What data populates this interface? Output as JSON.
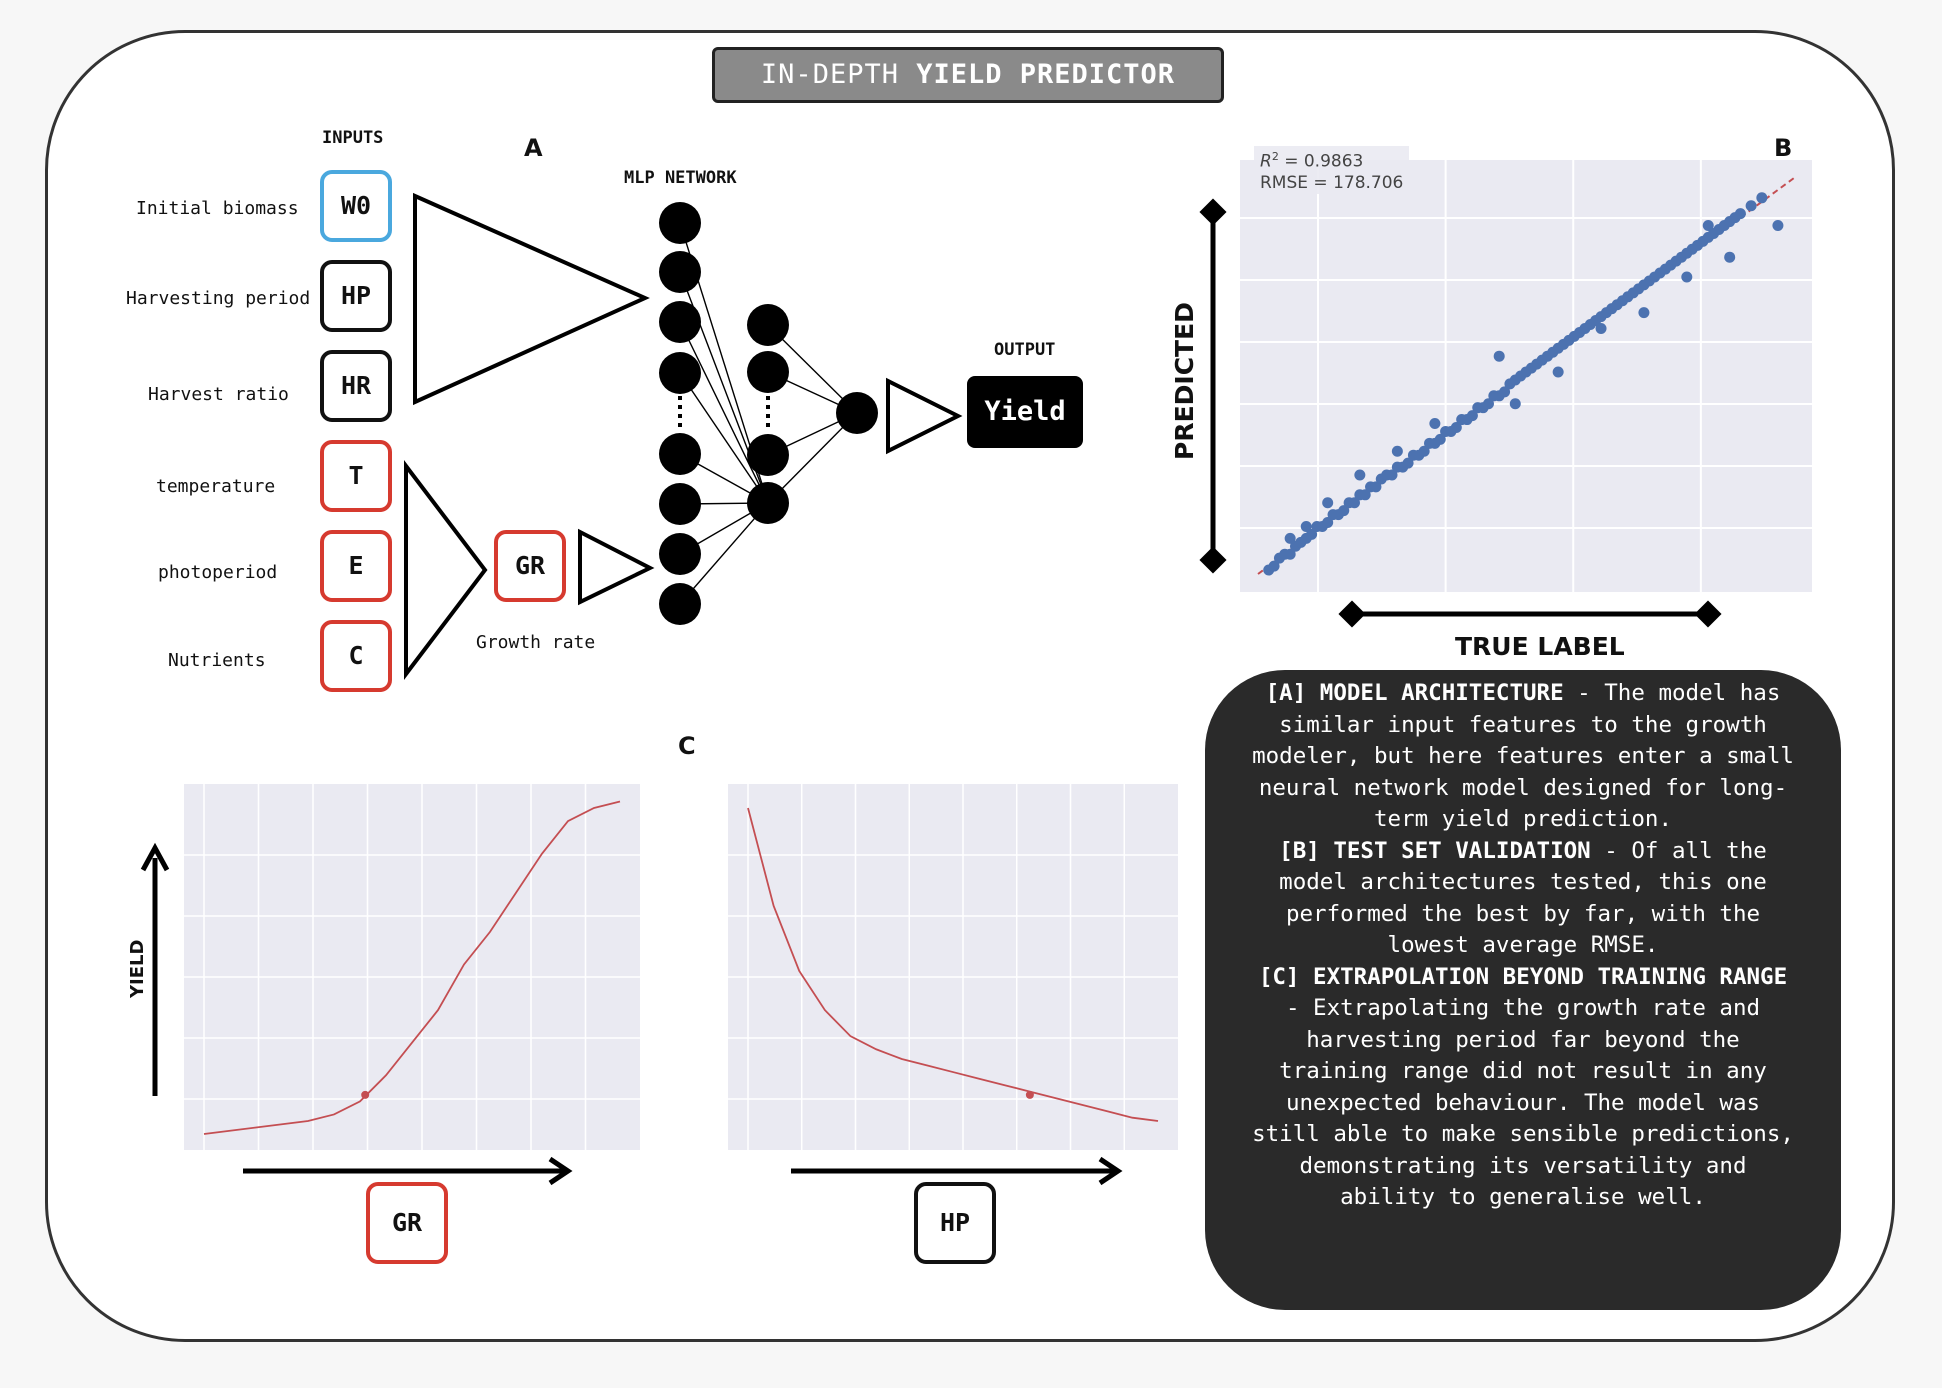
{
  "title": {
    "prefix": "IN-DEPTH",
    "bold": "YIELD PREDICTOR"
  },
  "panel_a": {
    "letter": "A",
    "inputs_header": "INPUTS",
    "mlp_header": "MLP NETWORK",
    "output_header": "OUTPUT",
    "inputs": [
      {
        "label": "Initial biomass",
        "code": "W0",
        "color": "blue"
      },
      {
        "label": "Harvesting period",
        "code": "HP",
        "color": "black"
      },
      {
        "label": "Harvest ratio",
        "code": "HR",
        "color": "black"
      },
      {
        "label": "temperature",
        "code": "T",
        "color": "red"
      },
      {
        "label": "photoperiod",
        "code": "E",
        "color": "red"
      },
      {
        "label": "Nutrients",
        "code": "C",
        "color": "red"
      }
    ],
    "growth_rate_code": "GR",
    "growth_rate_label": "Growth rate",
    "output_label": "Yield"
  },
  "panel_b": {
    "letter": "B",
    "r2_text": "= 0.9863",
    "r2_symbol": "R",
    "r2_sup": "2",
    "rmse_text": "RMSE = 178.706",
    "xlabel": "TRUE LABEL",
    "ylabel": "PREDICTED"
  },
  "panel_c": {
    "letter": "C",
    "ylabel": "YIELD",
    "left_x_code": "GR",
    "right_x_code": "HP"
  },
  "description": {
    "a_head": "[A] MODEL ARCHITECTURE",
    "a_body": " - The model has similar input features to the growth modeler, but here features enter a small neural network model designed for long-term yield prediction.",
    "b_head": "[B] TEST SET VALIDATION",
    "b_body": " - Of all the model architectures tested, this one performed the best by far, with the lowest average RMSE.",
    "c_head": "[C] EXTRAPOLATION BEYOND TRAINING RANGE",
    "c_body": " - Extrapolating the growth rate and harvesting period far beyond the training range did not result in any unexpected behaviour. The model was still able to make sensible predictions, demonstrating its versatility and ability to generalise well."
  },
  "chart_data": [
    {
      "type": "scatter",
      "title": "",
      "xlabel": "TRUE LABEL",
      "ylabel": "PREDICTED",
      "annotations": [
        "R^2 = 0.9863",
        "RMSE = 178.706"
      ],
      "reference_line": "y = x (dashed red)",
      "grid": true,
      "points_x": [
        0.02,
        0.03,
        0.04,
        0.05,
        0.06,
        0.07,
        0.08,
        0.09,
        0.1,
        0.11,
        0.12,
        0.13,
        0.14,
        0.15,
        0.16,
        0.17,
        0.18,
        0.19,
        0.2,
        0.21,
        0.22,
        0.23,
        0.24,
        0.25,
        0.26,
        0.27,
        0.28,
        0.29,
        0.3,
        0.31,
        0.32,
        0.33,
        0.34,
        0.35,
        0.36,
        0.37,
        0.38,
        0.39,
        0.4,
        0.41,
        0.42,
        0.43,
        0.44,
        0.45,
        0.46,
        0.47,
        0.48,
        0.49,
        0.5,
        0.51,
        0.52,
        0.53,
        0.54,
        0.55,
        0.56,
        0.57,
        0.58,
        0.59,
        0.6,
        0.61,
        0.62,
        0.63,
        0.64,
        0.65,
        0.66,
        0.67,
        0.68,
        0.69,
        0.7,
        0.71,
        0.72,
        0.73,
        0.74,
        0.75,
        0.76,
        0.77,
        0.78,
        0.79,
        0.8,
        0.81,
        0.82,
        0.83,
        0.84,
        0.85,
        0.86,
        0.87,
        0.88,
        0.89,
        0.9,
        0.92,
        0.94,
        0.97,
        0.06,
        0.09,
        0.13,
        0.19,
        0.26,
        0.33,
        0.45,
        0.48,
        0.56,
        0.64,
        0.72,
        0.8,
        0.84,
        0.88
      ],
      "points_y": [
        0.01,
        0.02,
        0.04,
        0.05,
        0.05,
        0.07,
        0.08,
        0.09,
        0.1,
        0.12,
        0.12,
        0.13,
        0.15,
        0.15,
        0.16,
        0.18,
        0.18,
        0.2,
        0.2,
        0.22,
        0.22,
        0.24,
        0.25,
        0.25,
        0.27,
        0.27,
        0.28,
        0.3,
        0.3,
        0.31,
        0.33,
        0.33,
        0.34,
        0.36,
        0.36,
        0.37,
        0.39,
        0.39,
        0.4,
        0.42,
        0.42,
        0.43,
        0.45,
        0.45,
        0.46,
        0.48,
        0.49,
        0.5,
        0.51,
        0.52,
        0.53,
        0.54,
        0.55,
        0.56,
        0.57,
        0.58,
        0.59,
        0.6,
        0.61,
        0.62,
        0.63,
        0.64,
        0.65,
        0.66,
        0.67,
        0.68,
        0.69,
        0.7,
        0.71,
        0.72,
        0.73,
        0.74,
        0.75,
        0.76,
        0.77,
        0.78,
        0.79,
        0.8,
        0.81,
        0.82,
        0.83,
        0.84,
        0.85,
        0.86,
        0.87,
        0.88,
        0.89,
        0.9,
        0.91,
        0.93,
        0.95,
        0.88,
        0.09,
        0.12,
        0.18,
        0.25,
        0.31,
        0.38,
        0.55,
        0.43,
        0.51,
        0.62,
        0.66,
        0.75,
        0.88,
        0.8
      ]
    },
    {
      "type": "line",
      "title": "",
      "xlabel": "GR",
      "ylabel": "YIELD",
      "grid": true,
      "x": [
        0,
        1,
        2,
        3,
        4,
        5,
        6,
        7,
        8,
        9,
        10,
        11,
        12,
        13,
        14,
        15,
        16
      ],
      "y": [
        0.0,
        0.01,
        0.02,
        0.03,
        0.04,
        0.06,
        0.1,
        0.18,
        0.28,
        0.38,
        0.52,
        0.62,
        0.74,
        0.86,
        0.96,
        1.0,
        1.02
      ],
      "marker_point": [
        6.2,
        0.12
      ]
    },
    {
      "type": "line",
      "title": "",
      "xlabel": "HP",
      "ylabel": "YIELD",
      "grid": true,
      "x": [
        0,
        1,
        2,
        3,
        4,
        5,
        6,
        7,
        8,
        9,
        10,
        11,
        12,
        13,
        14,
        15,
        16
      ],
      "y": [
        1.0,
        0.7,
        0.5,
        0.38,
        0.3,
        0.26,
        0.23,
        0.21,
        0.19,
        0.17,
        0.15,
        0.13,
        0.11,
        0.09,
        0.07,
        0.05,
        0.04
      ],
      "marker_point": [
        11.0,
        0.12
      ]
    }
  ]
}
